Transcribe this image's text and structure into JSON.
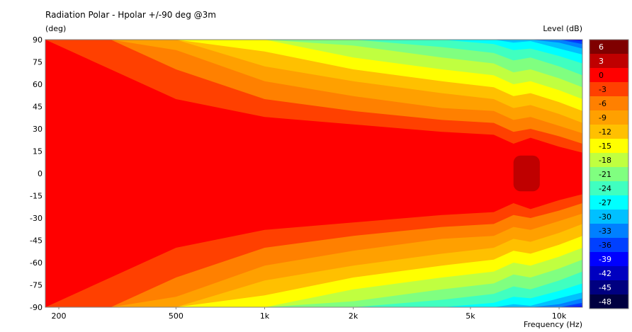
{
  "chart_data": {
    "type": "heatmap",
    "title": "Radiation Polar - Hpolar +/-90 deg @3m",
    "ylabel": "(deg)",
    "xlabel": "Frequency  (Hz)",
    "colorbar_label": "Level  (dB)",
    "x_scale": "log",
    "xlim": [
      180,
      12000
    ],
    "ylim": [
      -90,
      90
    ],
    "x_ticks": [
      {
        "value": 200,
        "label": "200"
      },
      {
        "value": 500,
        "label": "500"
      },
      {
        "value": 1000,
        "label": "1k"
      },
      {
        "value": 2000,
        "label": "2k"
      },
      {
        "value": 5000,
        "label": "5k"
      },
      {
        "value": 10000,
        "label": "10k"
      }
    ],
    "y_ticks": [
      {
        "value": 90,
        "label": "90"
      },
      {
        "value": 75,
        "label": "75"
      },
      {
        "value": 60,
        "label": "60"
      },
      {
        "value": 45,
        "label": "45"
      },
      {
        "value": 30,
        "label": "30"
      },
      {
        "value": 15,
        "label": "15"
      },
      {
        "value": 0,
        "label": "0"
      },
      {
        "value": -15,
        "label": "-15"
      },
      {
        "value": -30,
        "label": "-30"
      },
      {
        "value": -45,
        "label": "-45"
      },
      {
        "value": -60,
        "label": "-60"
      },
      {
        "value": -75,
        "label": "-75"
      },
      {
        "value": -90,
        "label": "-90"
      }
    ],
    "levels": [
      {
        "label": "6",
        "color": "#7f0000"
      },
      {
        "label": "3",
        "color": "#bf0000"
      },
      {
        "label": "0",
        "color": "#ff0000"
      },
      {
        "label": "-3",
        "color": "#ff4000"
      },
      {
        "label": "-6",
        "color": "#ff8000"
      },
      {
        "label": "-9",
        "color": "#ffa000"
      },
      {
        "label": "-12",
        "color": "#ffc000"
      },
      {
        "label": "-15",
        "color": "#ffff00"
      },
      {
        "label": "-18",
        "color": "#c0ff40"
      },
      {
        "label": "-21",
        "color": "#80ff80"
      },
      {
        "label": "-24",
        "color": "#40ffc0"
      },
      {
        "label": "-27",
        "color": "#00ffff"
      },
      {
        "label": "-30",
        "color": "#00c0ff"
      },
      {
        "label": "-33",
        "color": "#0080ff"
      },
      {
        "label": "-36",
        "color": "#0040ff"
      },
      {
        "label": "-39",
        "color": "#0000ff"
      },
      {
        "label": "-42",
        "color": "#0000c0"
      },
      {
        "label": "-45",
        "color": "#000080"
      },
      {
        "label": "-48",
        "color": "#000040"
      }
    ],
    "series": [
      {
        "values_description": "contour boundaries: off-axis angle (deg) where level drops to given dB, per frequency",
        "frequencies": [
          180,
          300,
          500,
          1000,
          2000,
          4000,
          6000,
          7000,
          8000,
          10000,
          12000
        ],
        "contours": [
          {
            "level": "-3",
            "angles": [
              90,
              70,
              50,
              38,
              33,
              28,
              26,
              20,
              24,
              18,
              14
            ]
          },
          {
            "level": "-6",
            "angles": [
              90,
              90,
              70,
              50,
              42,
              36,
              34,
              28,
              30,
              25,
              20
            ]
          },
          {
            "level": "-9",
            "angles": [
              90,
              90,
              83,
              62,
              52,
              44,
              42,
              36,
              38,
              32,
              27
            ]
          },
          {
            "level": "-12",
            "angles": [
              90,
              90,
              90,
              72,
              62,
              54,
              50,
              44,
              46,
              40,
              34
            ]
          },
          {
            "level": "-15",
            "angles": [
              90,
              90,
              90,
              82,
              70,
              62,
              58,
              52,
              54,
              48,
              42
            ]
          },
          {
            "level": "-18",
            "angles": [
              90,
              90,
              90,
              90,
              78,
              70,
              66,
              60,
              62,
              56,
              50
            ]
          },
          {
            "level": "-21",
            "angles": [
              90,
              90,
              90,
              90,
              86,
              78,
              74,
              68,
              70,
              64,
              58
            ]
          },
          {
            "level": "-24",
            "angles": [
              90,
              90,
              90,
              90,
              90,
              85,
              81,
              76,
              78,
              72,
              66
            ]
          },
          {
            "level": "-27",
            "angles": [
              90,
              90,
              90,
              90,
              90,
              90,
              87,
              83,
              84,
              79,
              74
            ]
          },
          {
            "level": "-30",
            "angles": [
              90,
              90,
              90,
              90,
              90,
              90,
              90,
              88,
              89,
              84,
              80
            ]
          },
          {
            "level": "-33",
            "angles": [
              90,
              90,
              90,
              90,
              90,
              90,
              90,
              90,
              90,
              88,
              84
            ]
          },
          {
            "level": "-36",
            "angles": [
              90,
              90,
              90,
              90,
              90,
              90,
              90,
              90,
              90,
              90,
              87
            ]
          },
          {
            "level": "-39",
            "angles": [
              90,
              90,
              90,
              90,
              90,
              90,
              90,
              90,
              90,
              90,
              89
            ]
          }
        ],
        "peak_region": {
          "level": "3",
          "freq_range": [
            7000,
            8600
          ],
          "angle_range": [
            -12,
            12
          ]
        }
      }
    ]
  }
}
